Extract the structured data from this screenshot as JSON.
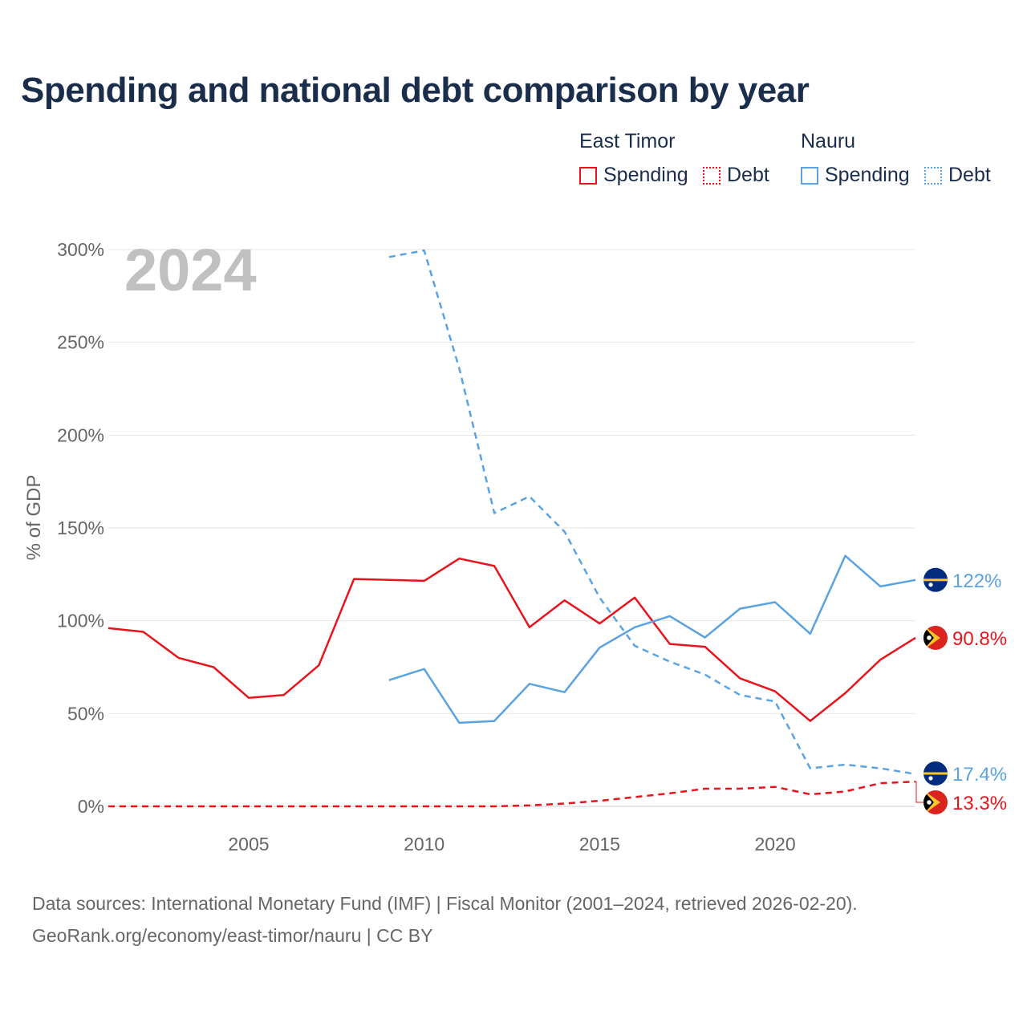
{
  "title": "Spending and national debt comparison by year",
  "legend": {
    "groups": [
      {
        "country": "East Timor",
        "items": [
          {
            "label": "Spending",
            "style": "solid",
            "color": "#e8141c"
          },
          {
            "label": "Debt",
            "style": "dotted",
            "color": "#e8141c"
          }
        ]
      },
      {
        "country": "Nauru",
        "items": [
          {
            "label": "Spending",
            "style": "solid",
            "color": "#5aa3e0"
          },
          {
            "label": "Debt",
            "style": "dotted",
            "color": "#5aa3e0"
          }
        ]
      }
    ]
  },
  "colors": {
    "east_timor": "#e8141c",
    "nauru": "#5aa3e0",
    "title": "#1a2d4a",
    "year_watermark": "#c0c0c0"
  },
  "chart_data": {
    "type": "line",
    "title": "Spending and national debt comparison by year",
    "year_label": "2024",
    "xlabel": "",
    "ylabel": "% of GDP",
    "xlim": [
      2001,
      2024
    ],
    "ylim": [
      0,
      300
    ],
    "x_ticks": [
      2005,
      2010,
      2015,
      2020
    ],
    "y_ticks": [
      0,
      50,
      100,
      150,
      200,
      250,
      300
    ],
    "y_tick_labels": [
      "0%",
      "50%",
      "100%",
      "150%",
      "200%",
      "250%",
      "300%"
    ],
    "grid": true,
    "series": [
      {
        "name": "East Timor Spending",
        "country": "East Timor",
        "metric": "Spending",
        "style": "solid",
        "color": "#e8141c",
        "x": [
          2001,
          2002,
          2003,
          2004,
          2005,
          2006,
          2007,
          2008,
          2009,
          2010,
          2011,
          2012,
          2013,
          2014,
          2015,
          2016,
          2017,
          2018,
          2019,
          2020,
          2021,
          2022,
          2023,
          2024
        ],
        "values": [
          96,
          94,
          80,
          75,
          58.5,
          60,
          76,
          122.5,
          122,
          121.5,
          133.5,
          129.5,
          96.5,
          111,
          98.5,
          112.5,
          87.5,
          86,
          69,
          62,
          46,
          61,
          79,
          90.8
        ],
        "end_label": "90.8%"
      },
      {
        "name": "East Timor Debt",
        "country": "East Timor",
        "metric": "Debt",
        "style": "dashed",
        "color": "#e8141c",
        "x": [
          2001,
          2002,
          2003,
          2004,
          2005,
          2006,
          2007,
          2008,
          2009,
          2010,
          2011,
          2012,
          2013,
          2014,
          2015,
          2016,
          2017,
          2018,
          2019,
          2020,
          2021,
          2022,
          2023,
          2024
        ],
        "values": [
          0,
          0,
          0,
          0,
          0,
          0,
          0,
          0,
          0,
          0,
          0,
          0,
          0.5,
          1.5,
          3,
          5,
          7,
          9.5,
          9.5,
          10.5,
          6.5,
          8,
          12.5,
          13.3
        ],
        "end_label": "13.3%"
      },
      {
        "name": "Nauru Spending",
        "country": "Nauru",
        "metric": "Spending",
        "style": "solid",
        "color": "#5aa3e0",
        "x": [
          2009,
          2010,
          2011,
          2012,
          2013,
          2014,
          2015,
          2016,
          2017,
          2018,
          2019,
          2020,
          2021,
          2022,
          2023,
          2024
        ],
        "values": [
          68,
          74,
          45,
          46,
          66,
          61.5,
          85.5,
          96.5,
          102.5,
          91,
          106.5,
          110,
          93,
          135,
          118.5,
          122
        ],
        "end_label": "122%"
      },
      {
        "name": "Nauru Debt",
        "country": "Nauru",
        "metric": "Debt",
        "style": "dashed",
        "color": "#5aa3e0",
        "x": [
          2009,
          2010,
          2011,
          2012,
          2013,
          2014,
          2015,
          2016,
          2017,
          2018,
          2019,
          2020,
          2021,
          2022,
          2023,
          2024
        ],
        "values": [
          296,
          299.5,
          236,
          158,
          167,
          148,
          112.5,
          86.5,
          78,
          71,
          60,
          56.5,
          20.5,
          22.5,
          20.5,
          17.4
        ],
        "end_label": "17.4%"
      }
    ]
  },
  "source": {
    "line1": "Data sources: International Monetary Fund (IMF) | Fiscal Monitor (2001–2024, retrieved 2026-02-20).",
    "line2": "GeoRank.org/economy/east-timor/nauru | CC BY"
  }
}
